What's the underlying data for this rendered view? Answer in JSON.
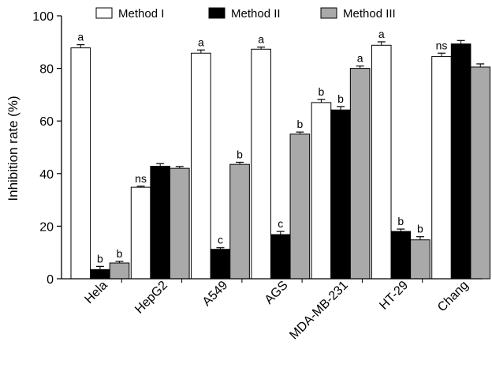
{
  "chart_data": {
    "type": "bar",
    "title": "",
    "xlabel": "",
    "ylabel": "Inhibition rate (%)",
    "ylim": [
      0,
      100
    ],
    "yticks": [
      0,
      20,
      40,
      60,
      80,
      100
    ],
    "categories": [
      "Hela",
      "HepG2",
      "A549",
      "AGS",
      "MDA-MB-231",
      "HT-29",
      "Chang"
    ],
    "series": [
      {
        "name": "Method I",
        "color": "#ffffff",
        "values": [
          87.8,
          34.8,
          85.8,
          87.3,
          67.0,
          88.8,
          84.5
        ],
        "errors": [
          1.2,
          0.4,
          1.2,
          0.8,
          1.2,
          1.3,
          1.3
        ],
        "labels": [
          "a",
          "ns",
          "a",
          "a",
          "b",
          "a",
          "ns"
        ]
      },
      {
        "name": "Method II",
        "color": "#000000",
        "values": [
          3.5,
          42.8,
          11.2,
          16.8,
          64.2,
          18.0,
          89.3
        ],
        "errors": [
          1.2,
          1.0,
          0.6,
          1.2,
          1.3,
          0.9,
          1.3
        ],
        "labels": [
          "b",
          "",
          "c",
          "c",
          "b",
          "b",
          ""
        ]
      },
      {
        "name": "Method III",
        "color": "#a9a9a9",
        "values": [
          6.0,
          42.0,
          43.5,
          55.0,
          80.0,
          14.8,
          80.5
        ],
        "errors": [
          0.6,
          0.7,
          0.8,
          0.8,
          0.9,
          1.2,
          1.2
        ],
        "labels": [
          "b",
          "",
          "b",
          "b",
          "a",
          "b",
          ""
        ]
      }
    ],
    "legend_position": "top"
  }
}
